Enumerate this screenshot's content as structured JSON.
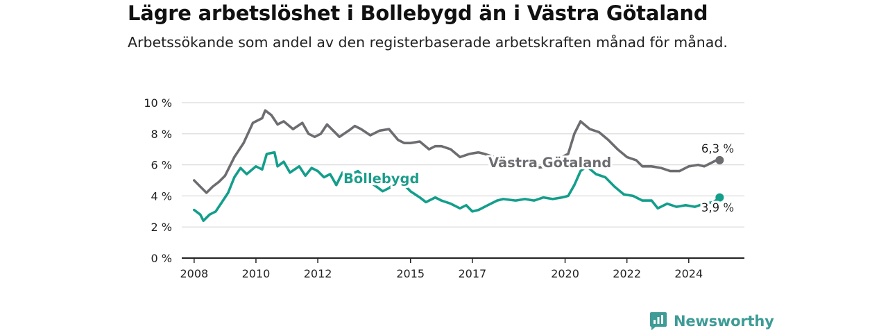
{
  "title": "Lägre arbetslöshet i Bollebygd än i Västra Götaland",
  "subtitle": "Arbetssökande som andel av den registerbaserade arbetskraften månad för månad.",
  "brand": "Newsworthy",
  "colors": {
    "vg": "#6d6c70",
    "bb": "#139e8b",
    "axis": "#222222",
    "grid": "#d9d9d9",
    "brand": "#3e9b96"
  },
  "chart_data": {
    "type": "line",
    "x_axis": {
      "range": [
        2007.6,
        2025.8
      ],
      "ticks": [
        2008,
        2010,
        2012,
        2015,
        2017,
        2020,
        2022,
        2024
      ]
    },
    "y_axis": {
      "range": [
        0,
        10
      ],
      "ticks": [
        0,
        2,
        4,
        6,
        8,
        10
      ],
      "unit": "%"
    },
    "grid": true,
    "series": [
      {
        "name": "Västra Götaland",
        "color": "#6d6c70",
        "end_label": "6,3 %",
        "points": [
          [
            2008.0,
            5.0
          ],
          [
            2008.2,
            4.6
          ],
          [
            2008.4,
            4.2
          ],
          [
            2008.6,
            4.6
          ],
          [
            2008.8,
            4.9
          ],
          [
            2009.0,
            5.3
          ],
          [
            2009.3,
            6.5
          ],
          [
            2009.6,
            7.4
          ],
          [
            2009.9,
            8.7
          ],
          [
            2010.2,
            9.0
          ],
          [
            2010.3,
            9.5
          ],
          [
            2010.5,
            9.2
          ],
          [
            2010.7,
            8.6
          ],
          [
            2010.9,
            8.8
          ],
          [
            2011.2,
            8.3
          ],
          [
            2011.5,
            8.7
          ],
          [
            2011.7,
            8.0
          ],
          [
            2011.9,
            7.8
          ],
          [
            2012.1,
            8.0
          ],
          [
            2012.3,
            8.6
          ],
          [
            2012.5,
            8.2
          ],
          [
            2012.7,
            7.8
          ],
          [
            2013.0,
            8.2
          ],
          [
            2013.2,
            8.5
          ],
          [
            2013.4,
            8.3
          ],
          [
            2013.7,
            7.9
          ],
          [
            2014.0,
            8.2
          ],
          [
            2014.3,
            8.3
          ],
          [
            2014.6,
            7.6
          ],
          [
            2014.8,
            7.4
          ],
          [
            2015.0,
            7.4
          ],
          [
            2015.3,
            7.5
          ],
          [
            2015.6,
            7.0
          ],
          [
            2015.8,
            7.2
          ],
          [
            2016.0,
            7.2
          ],
          [
            2016.3,
            7.0
          ],
          [
            2016.6,
            6.5
          ],
          [
            2016.9,
            6.7
          ],
          [
            2017.2,
            6.8
          ],
          [
            2017.4,
            6.7
          ],
          [
            2017.7,
            6.5
          ],
          [
            2017.9,
            6.3
          ],
          [
            2018.5,
            6.0
          ],
          [
            2019.0,
            5.8
          ],
          [
            2019.5,
            5.9
          ],
          [
            2019.8,
            6.4
          ],
          [
            2020.1,
            6.7
          ],
          [
            2020.3,
            8.0
          ],
          [
            2020.5,
            8.8
          ],
          [
            2020.8,
            8.3
          ],
          [
            2021.1,
            8.1
          ],
          [
            2021.4,
            7.6
          ],
          [
            2021.7,
            7.0
          ],
          [
            2022.0,
            6.5
          ],
          [
            2022.3,
            6.3
          ],
          [
            2022.5,
            5.9
          ],
          [
            2022.8,
            5.9
          ],
          [
            2023.1,
            5.8
          ],
          [
            2023.4,
            5.6
          ],
          [
            2023.7,
            5.6
          ],
          [
            2024.0,
            5.9
          ],
          [
            2024.3,
            6.0
          ],
          [
            2024.5,
            5.9
          ],
          [
            2024.7,
            6.1
          ],
          [
            2024.9,
            6.3
          ],
          [
            2025.0,
            6.3
          ]
        ]
      },
      {
        "name": "Bollebygd",
        "color": "#139e8b",
        "end_label": "3,9 %",
        "points": [
          [
            2008.0,
            3.1
          ],
          [
            2008.2,
            2.8
          ],
          [
            2008.3,
            2.4
          ],
          [
            2008.5,
            2.8
          ],
          [
            2008.7,
            3.0
          ],
          [
            2008.9,
            3.6
          ],
          [
            2009.1,
            4.2
          ],
          [
            2009.3,
            5.2
          ],
          [
            2009.5,
            5.8
          ],
          [
            2009.7,
            5.4
          ],
          [
            2010.0,
            5.9
          ],
          [
            2010.2,
            5.7
          ],
          [
            2010.35,
            6.7
          ],
          [
            2010.6,
            6.8
          ],
          [
            2010.7,
            5.9
          ],
          [
            2010.9,
            6.2
          ],
          [
            2011.1,
            5.5
          ],
          [
            2011.4,
            5.9
          ],
          [
            2011.6,
            5.3
          ],
          [
            2011.8,
            5.8
          ],
          [
            2012.0,
            5.6
          ],
          [
            2012.2,
            5.2
          ],
          [
            2012.4,
            5.4
          ],
          [
            2012.6,
            4.7
          ],
          [
            2012.8,
            5.5
          ],
          [
            2013.0,
            5.3
          ],
          [
            2013.3,
            5.6
          ],
          [
            2013.6,
            5.0
          ],
          [
            2013.9,
            4.6
          ],
          [
            2014.1,
            4.3
          ],
          [
            2014.3,
            4.5
          ],
          [
            2014.6,
            5.0
          ],
          [
            2014.8,
            4.7
          ],
          [
            2015.0,
            4.3
          ],
          [
            2015.3,
            3.9
          ],
          [
            2015.5,
            3.6
          ],
          [
            2015.8,
            3.9
          ],
          [
            2016.0,
            3.7
          ],
          [
            2016.3,
            3.5
          ],
          [
            2016.6,
            3.2
          ],
          [
            2016.8,
            3.4
          ],
          [
            2017.0,
            3.0
          ],
          [
            2017.2,
            3.1
          ],
          [
            2017.5,
            3.4
          ],
          [
            2017.8,
            3.7
          ],
          [
            2018.0,
            3.8
          ],
          [
            2018.4,
            3.7
          ],
          [
            2018.7,
            3.8
          ],
          [
            2019.0,
            3.7
          ],
          [
            2019.3,
            3.9
          ],
          [
            2019.6,
            3.8
          ],
          [
            2019.9,
            3.9
          ],
          [
            2020.1,
            4.0
          ],
          [
            2020.3,
            4.7
          ],
          [
            2020.5,
            5.6
          ],
          [
            2020.7,
            5.9
          ],
          [
            2021.0,
            5.4
          ],
          [
            2021.3,
            5.2
          ],
          [
            2021.6,
            4.6
          ],
          [
            2021.9,
            4.1
          ],
          [
            2022.2,
            4.0
          ],
          [
            2022.5,
            3.7
          ],
          [
            2022.8,
            3.7
          ],
          [
            2023.0,
            3.2
          ],
          [
            2023.3,
            3.5
          ],
          [
            2023.6,
            3.3
          ],
          [
            2023.9,
            3.4
          ],
          [
            2024.2,
            3.3
          ],
          [
            2024.5,
            3.5
          ],
          [
            2024.8,
            3.6
          ],
          [
            2025.0,
            3.9
          ]
        ]
      }
    ]
  }
}
